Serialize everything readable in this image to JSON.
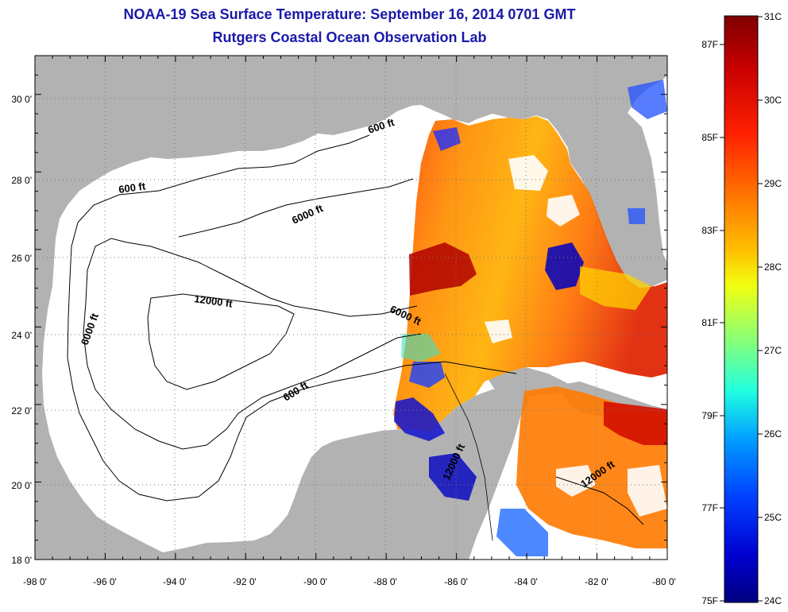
{
  "title": "NOAA-19 Sea Surface Temperature:  September 16, 2014 0701 GMT",
  "subtitle": "Rutgers Coastal Ocean Observation Lab",
  "axes": {
    "lon_ticks": [
      "-98 0'",
      "-96 0'",
      "-94 0'",
      "-92 0'",
      "-90 0'",
      "-88 0'",
      "-86 0'",
      "-84 0'",
      "-82 0'",
      "-80 0'"
    ],
    "lat_ticks": [
      "18 0'",
      "20 0'",
      "22 0'",
      "24 0'",
      "26 0'",
      "28 0'",
      "30 0'"
    ],
    "lon_range": [
      -98,
      -80
    ],
    "lat_range": [
      18,
      31
    ]
  },
  "contours": {
    "labels": [
      "600 ft",
      "600 ft",
      "600 ft",
      "6000 ft",
      "6000 ft",
      "6000 ft",
      "12000 ft",
      "12000 ft",
      "12000 ft"
    ]
  },
  "colorbar": {
    "f_labels": [
      "87F",
      "85F",
      "83F",
      "81F",
      "79F",
      "77F",
      "75F"
    ],
    "c_labels": [
      "31C",
      "30C",
      "29C",
      "28C",
      "27C",
      "26C",
      "25C",
      "24C"
    ],
    "colors": [
      "#7f0000",
      "#d40000",
      "#ff3000",
      "#ff8000",
      "#ffd000",
      "#e0ff20",
      "#80ff80",
      "#20ffe0",
      "#00b0ff",
      "#0050ff",
      "#0000e0",
      "#00007f"
    ]
  },
  "colors": {
    "land": "#b2b2b2",
    "title": "#1a1aa8",
    "grid": "#888888"
  }
}
